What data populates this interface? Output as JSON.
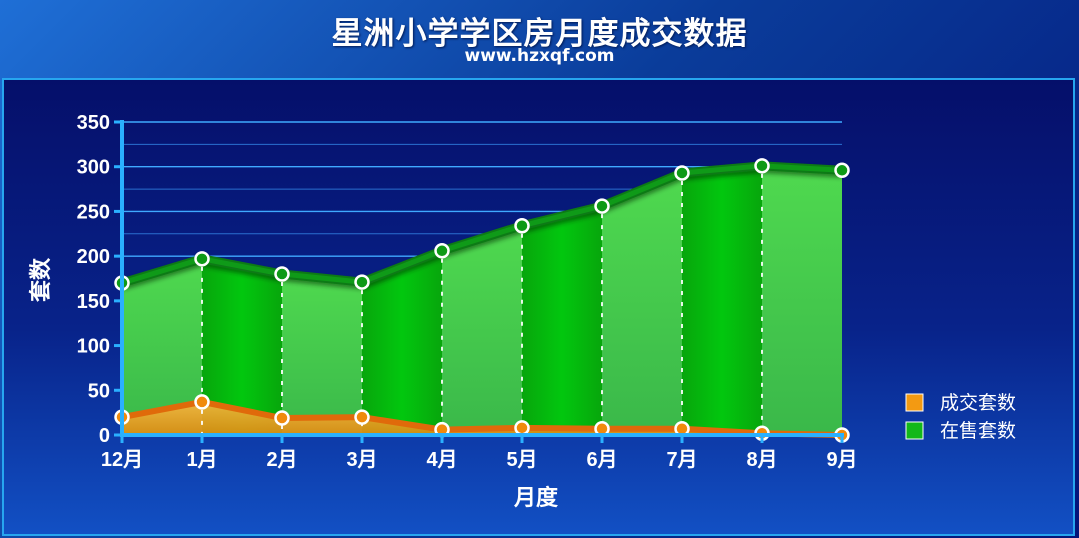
{
  "header": {
    "title": "星洲小学学区房月度成交数据",
    "subtitle": "www.hzxqf.com"
  },
  "chart_data": {
    "type": "area",
    "categories": [
      "12月",
      "1月",
      "2月",
      "3月",
      "4月",
      "5月",
      "6月",
      "7月",
      "8月",
      "9月"
    ],
    "series": [
      {
        "name": "成交套数",
        "color": "#f39a12",
        "values": [
          20,
          37,
          19,
          20,
          6,
          8,
          7,
          7,
          2,
          0
        ]
      },
      {
        "name": "在售套数",
        "color": "#12b81a",
        "values": [
          170,
          197,
          180,
          171,
          206,
          234,
          256,
          293,
          301,
          296
        ]
      }
    ],
    "xlabel": "月度",
    "ylabel": "套数",
    "ylim": [
      0,
      350
    ],
    "yticks": [
      0,
      50,
      100,
      150,
      200,
      250,
      300,
      350
    ],
    "grid": true,
    "legend_position": "right"
  }
}
